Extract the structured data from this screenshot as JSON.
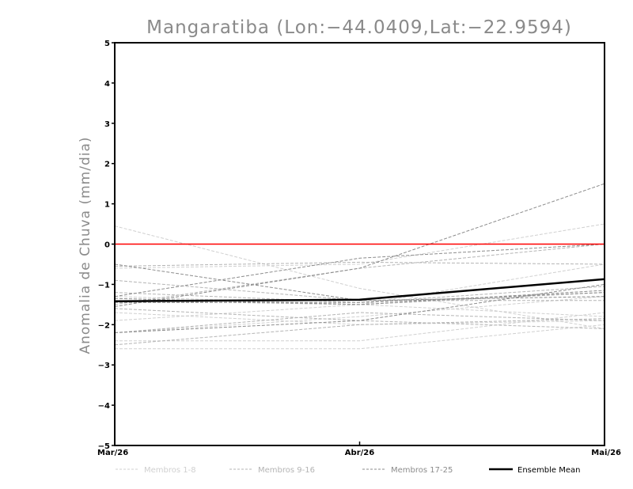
{
  "chart_data": {
    "type": "line",
    "title": "Mangaratiba (Lon:−44.0409,Lat:−22.9594)",
    "xlabel": "",
    "ylabel": "Anomalia de Chuva (mm/dia)",
    "categories": [
      "Mar/26",
      "Abr/26",
      "Mai/26"
    ],
    "ylim": [
      -5,
      5
    ],
    "yticks": [
      5,
      4,
      3,
      2,
      1,
      0,
      -1,
      -2,
      -3,
      -4,
      -5
    ],
    "ytick_labels": [
      "5",
      "4",
      "3",
      "2",
      "1",
      "0",
      "−1",
      "−2",
      "−3",
      "−4",
      "−5"
    ],
    "reference_line": {
      "value": 0,
      "color": "#ff0000"
    },
    "legend_position": "bottom",
    "series": [
      {
        "group": "Membros 1-8",
        "values": [
          0.45,
          -1.1,
          -2.1
        ]
      },
      {
        "group": "Membros 1-8",
        "values": [
          -0.6,
          -0.5,
          0.5
        ]
      },
      {
        "group": "Membros 1-8",
        "values": [
          -1.3,
          -1.5,
          -1.8
        ]
      },
      {
        "group": "Membros 1-8",
        "values": [
          -1.7,
          -2.0,
          -1.9
        ]
      },
      {
        "group": "Membros 1-8",
        "values": [
          -2.2,
          -1.8,
          -1.3
        ]
      },
      {
        "group": "Membros 1-8",
        "values": [
          -2.4,
          -2.4,
          -1.7
        ]
      },
      {
        "group": "Membros 1-8",
        "values": [
          -2.6,
          -2.6,
          -2.0
        ]
      },
      {
        "group": "Membros 1-8",
        "values": [
          -1.9,
          -1.5,
          -0.5
        ]
      },
      {
        "group": "Membros 9-16",
        "values": [
          -0.55,
          -0.45,
          -0.5
        ]
      },
      {
        "group": "Membros 9-16",
        "values": [
          -1.4,
          -1.5,
          -1.2
        ]
      },
      {
        "group": "Membros 9-16",
        "values": [
          -2.2,
          -1.7,
          -1.9
        ]
      },
      {
        "group": "Membros 9-16",
        "values": [
          -1.6,
          -1.9,
          -2.1
        ]
      },
      {
        "group": "Membros 9-16",
        "values": [
          -2.5,
          -2.0,
          -1.85
        ]
      },
      {
        "group": "Membros 9-16",
        "values": [
          -1.2,
          -1.45,
          -1.05
        ]
      },
      {
        "group": "Membros 9-16",
        "values": [
          -0.9,
          -1.4,
          -1.4
        ]
      },
      {
        "group": "Membros 9-16",
        "values": [
          -1.5,
          -0.6,
          0.0
        ]
      },
      {
        "group": "Membros 17-25",
        "values": [
          -0.5,
          -1.4,
          -1.3
        ]
      },
      {
        "group": "Membros 17-25",
        "values": [
          -1.3,
          -0.35,
          0.0
        ]
      },
      {
        "group": "Membros 17-25",
        "values": [
          -1.55,
          -0.6,
          1.5
        ]
      },
      {
        "group": "Membros 17-25",
        "values": [
          -2.2,
          -1.9,
          -1.0
        ]
      },
      {
        "group": "Membros 17-25",
        "values": [
          -1.45,
          -1.45,
          -1.2
        ]
      },
      {
        "group": "Membros 17-25",
        "values": [
          -1.35,
          -1.5,
          -1.15
        ]
      },
      {
        "group": "Ensemble Mean",
        "values": [
          -1.42,
          -1.38,
          -0.87
        ]
      }
    ],
    "groups": [
      {
        "name": "Membros 1-8",
        "color": "#d0d0d0",
        "dash": "4,2",
        "width": 1
      },
      {
        "name": "Membros 9-16",
        "color": "#b4b4b4",
        "dash": "4,2",
        "width": 1
      },
      {
        "name": "Membros 17-25",
        "color": "#8c8c8c",
        "dash": "4,2",
        "width": 1
      },
      {
        "name": "Ensemble Mean",
        "color": "#000000",
        "dash": "",
        "width": 2.5
      }
    ]
  }
}
